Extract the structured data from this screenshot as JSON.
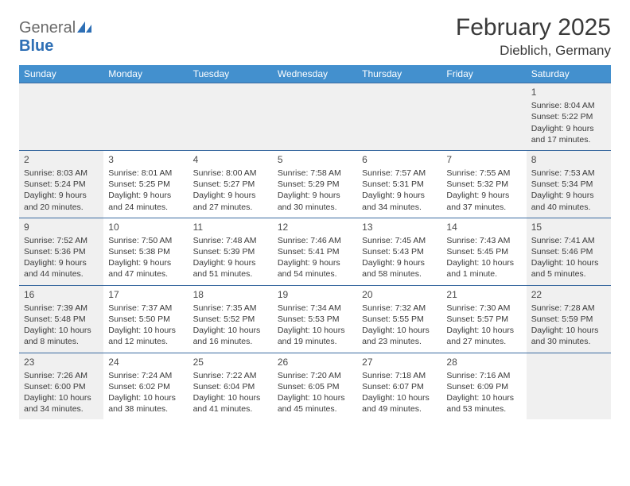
{
  "logo": {
    "text_gray": "General",
    "text_blue": "Blue"
  },
  "header": {
    "month": "February 2025",
    "location": "Dieblich, Germany"
  },
  "colors": {
    "header_bar": "#4390ce",
    "row_divider": "#3a6aa0",
    "shade": "#f0f0f0",
    "text": "#3a3a3a",
    "logo_gray": "#6a6a6a",
    "logo_blue": "#2e6fb5"
  },
  "weekdays": [
    "Sunday",
    "Monday",
    "Tuesday",
    "Wednesday",
    "Thursday",
    "Friday",
    "Saturday"
  ],
  "weeks": [
    [
      null,
      null,
      null,
      null,
      null,
      null,
      {
        "n": "1",
        "sr": "Sunrise: 8:04 AM",
        "ss": "Sunset: 5:22 PM",
        "d1": "Daylight: 9 hours",
        "d2": "and 17 minutes."
      }
    ],
    [
      {
        "n": "2",
        "sr": "Sunrise: 8:03 AM",
        "ss": "Sunset: 5:24 PM",
        "d1": "Daylight: 9 hours",
        "d2": "and 20 minutes."
      },
      {
        "n": "3",
        "sr": "Sunrise: 8:01 AM",
        "ss": "Sunset: 5:25 PM",
        "d1": "Daylight: 9 hours",
        "d2": "and 24 minutes."
      },
      {
        "n": "4",
        "sr": "Sunrise: 8:00 AM",
        "ss": "Sunset: 5:27 PM",
        "d1": "Daylight: 9 hours",
        "d2": "and 27 minutes."
      },
      {
        "n": "5",
        "sr": "Sunrise: 7:58 AM",
        "ss": "Sunset: 5:29 PM",
        "d1": "Daylight: 9 hours",
        "d2": "and 30 minutes."
      },
      {
        "n": "6",
        "sr": "Sunrise: 7:57 AM",
        "ss": "Sunset: 5:31 PM",
        "d1": "Daylight: 9 hours",
        "d2": "and 34 minutes."
      },
      {
        "n": "7",
        "sr": "Sunrise: 7:55 AM",
        "ss": "Sunset: 5:32 PM",
        "d1": "Daylight: 9 hours",
        "d2": "and 37 minutes."
      },
      {
        "n": "8",
        "sr": "Sunrise: 7:53 AM",
        "ss": "Sunset: 5:34 PM",
        "d1": "Daylight: 9 hours",
        "d2": "and 40 minutes."
      }
    ],
    [
      {
        "n": "9",
        "sr": "Sunrise: 7:52 AM",
        "ss": "Sunset: 5:36 PM",
        "d1": "Daylight: 9 hours",
        "d2": "and 44 minutes."
      },
      {
        "n": "10",
        "sr": "Sunrise: 7:50 AM",
        "ss": "Sunset: 5:38 PM",
        "d1": "Daylight: 9 hours",
        "d2": "and 47 minutes."
      },
      {
        "n": "11",
        "sr": "Sunrise: 7:48 AM",
        "ss": "Sunset: 5:39 PM",
        "d1": "Daylight: 9 hours",
        "d2": "and 51 minutes."
      },
      {
        "n": "12",
        "sr": "Sunrise: 7:46 AM",
        "ss": "Sunset: 5:41 PM",
        "d1": "Daylight: 9 hours",
        "d2": "and 54 minutes."
      },
      {
        "n": "13",
        "sr": "Sunrise: 7:45 AM",
        "ss": "Sunset: 5:43 PM",
        "d1": "Daylight: 9 hours",
        "d2": "and 58 minutes."
      },
      {
        "n": "14",
        "sr": "Sunrise: 7:43 AM",
        "ss": "Sunset: 5:45 PM",
        "d1": "Daylight: 10 hours",
        "d2": "and 1 minute."
      },
      {
        "n": "15",
        "sr": "Sunrise: 7:41 AM",
        "ss": "Sunset: 5:46 PM",
        "d1": "Daylight: 10 hours",
        "d2": "and 5 minutes."
      }
    ],
    [
      {
        "n": "16",
        "sr": "Sunrise: 7:39 AM",
        "ss": "Sunset: 5:48 PM",
        "d1": "Daylight: 10 hours",
        "d2": "and 8 minutes."
      },
      {
        "n": "17",
        "sr": "Sunrise: 7:37 AM",
        "ss": "Sunset: 5:50 PM",
        "d1": "Daylight: 10 hours",
        "d2": "and 12 minutes."
      },
      {
        "n": "18",
        "sr": "Sunrise: 7:35 AM",
        "ss": "Sunset: 5:52 PM",
        "d1": "Daylight: 10 hours",
        "d2": "and 16 minutes."
      },
      {
        "n": "19",
        "sr": "Sunrise: 7:34 AM",
        "ss": "Sunset: 5:53 PM",
        "d1": "Daylight: 10 hours",
        "d2": "and 19 minutes."
      },
      {
        "n": "20",
        "sr": "Sunrise: 7:32 AM",
        "ss": "Sunset: 5:55 PM",
        "d1": "Daylight: 10 hours",
        "d2": "and 23 minutes."
      },
      {
        "n": "21",
        "sr": "Sunrise: 7:30 AM",
        "ss": "Sunset: 5:57 PM",
        "d1": "Daylight: 10 hours",
        "d2": "and 27 minutes."
      },
      {
        "n": "22",
        "sr": "Sunrise: 7:28 AM",
        "ss": "Sunset: 5:59 PM",
        "d1": "Daylight: 10 hours",
        "d2": "and 30 minutes."
      }
    ],
    [
      {
        "n": "23",
        "sr": "Sunrise: 7:26 AM",
        "ss": "Sunset: 6:00 PM",
        "d1": "Daylight: 10 hours",
        "d2": "and 34 minutes."
      },
      {
        "n": "24",
        "sr": "Sunrise: 7:24 AM",
        "ss": "Sunset: 6:02 PM",
        "d1": "Daylight: 10 hours",
        "d2": "and 38 minutes."
      },
      {
        "n": "25",
        "sr": "Sunrise: 7:22 AM",
        "ss": "Sunset: 6:04 PM",
        "d1": "Daylight: 10 hours",
        "d2": "and 41 minutes."
      },
      {
        "n": "26",
        "sr": "Sunrise: 7:20 AM",
        "ss": "Sunset: 6:05 PM",
        "d1": "Daylight: 10 hours",
        "d2": "and 45 minutes."
      },
      {
        "n": "27",
        "sr": "Sunrise: 7:18 AM",
        "ss": "Sunset: 6:07 PM",
        "d1": "Daylight: 10 hours",
        "d2": "and 49 minutes."
      },
      {
        "n": "28",
        "sr": "Sunrise: 7:16 AM",
        "ss": "Sunset: 6:09 PM",
        "d1": "Daylight: 10 hours",
        "d2": "and 53 minutes."
      },
      null
    ]
  ]
}
